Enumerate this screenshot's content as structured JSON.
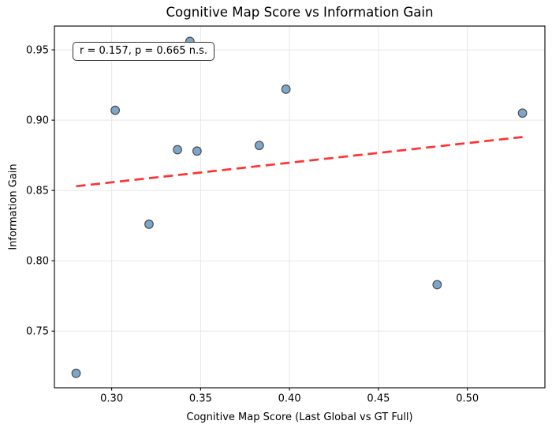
{
  "chart_data": {
    "type": "scatter",
    "title": "Cognitive Map Score vs Information Gain",
    "xlabel": "Cognitive Map Score (Last Global vs GT Full)",
    "ylabel": "Information Gain",
    "annotation": "r = 0.157, p = 0.665 n.s.",
    "points": [
      [
        0.28,
        0.72
      ],
      [
        0.302,
        0.907
      ],
      [
        0.321,
        0.826
      ],
      [
        0.337,
        0.879
      ],
      [
        0.344,
        0.956
      ],
      [
        0.348,
        0.878
      ],
      [
        0.383,
        0.882
      ],
      [
        0.398,
        0.922
      ],
      [
        0.483,
        0.783
      ],
      [
        0.531,
        0.905
      ]
    ],
    "trendline": {
      "x": [
        0.28,
        0.531
      ],
      "y": [
        0.853,
        0.888
      ],
      "style": "dashed"
    },
    "xticks": [
      0.3,
      0.35,
      0.4,
      0.45,
      0.5
    ],
    "xtick_labels": [
      "0.30",
      "0.35",
      "0.40",
      "0.45",
      "0.50"
    ],
    "yticks": [
      0.75,
      0.8,
      0.85,
      0.9,
      0.95
    ],
    "ytick_labels": [
      "0.75",
      "0.80",
      "0.85",
      "0.90",
      "0.95"
    ],
    "xlim": [
      0.2678,
      0.5436
    ],
    "ylim": [
      0.7097,
      0.9669
    ],
    "grid": true,
    "legend": null,
    "colors": {
      "point_fill": "#7da7ca",
      "point_edge": "#4d4d4d",
      "trend": "#ff3333",
      "grid": "#e7e7e7",
      "spine": "#000000"
    }
  }
}
